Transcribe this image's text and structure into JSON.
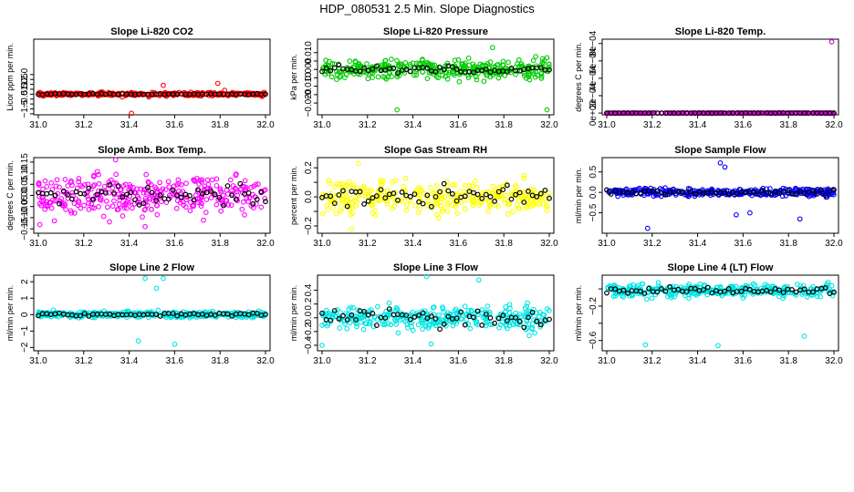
{
  "figure": {
    "title": "HDP_080531  2.5 Min. Slope Diagnostics"
  },
  "chart_data": [
    {
      "type": "scatter",
      "title": "Slope Li-820 CO2",
      "xlabel": "",
      "ylabel": "Licor ppm per min.",
      "color": "#ff0000",
      "xlim": [
        30.98,
        32.02
      ],
      "ylim": [
        -2.1,
        5.6
      ],
      "xticks": [
        31.0,
        31.2,
        31.4,
        31.6,
        31.8,
        32.0
      ],
      "xtick_labels": [
        "31.0",
        "31.2",
        "31.4",
        "31.6",
        "31.8",
        "32.0"
      ],
      "yticks": [
        -2,
        -1.5,
        -1,
        -0.5,
        0,
        0.5,
        1,
        1.5,
        2
      ],
      "ytick_labels": [
        "",
        "−1.5",
        "",
        "−0.5",
        "",
        "0.5",
        "1.0",
        "1.5",
        "2.0"
      ],
      "spread": 0.15,
      "black_spread": 0.05,
      "outliers": [
        [
          31.41,
          -1.95
        ],
        [
          31.55,
          0.9
        ],
        [
          31.79,
          1.1
        ],
        [
          31.82,
          0.4
        ]
      ]
    },
    {
      "type": "scatter",
      "title": "Slope Li-820 Pressure",
      "xlabel": "",
      "ylabel": "kPa per min.",
      "color": "#00cc00",
      "xlim": [
        30.98,
        32.02
      ],
      "ylim": [
        -0.027,
        0.018
      ],
      "xticks": [
        31.0,
        31.2,
        31.4,
        31.6,
        31.8,
        32.0
      ],
      "xtick_labels": [
        "31.0",
        "31.2",
        "31.4",
        "31.6",
        "31.8",
        "32.0"
      ],
      "yticks": [
        -0.02,
        -0.015,
        -0.01,
        -0.005,
        0.0,
        0.005,
        0.01
      ],
      "ytick_labels": [
        "−0.020",
        "",
        "−0.010",
        "",
        "0.000",
        "",
        "0.010"
      ],
      "spread": 0.005,
      "black_spread": 0.002,
      "outliers": [
        [
          31.33,
          -0.024
        ],
        [
          31.99,
          -0.024
        ],
        [
          31.75,
          0.013
        ],
        [
          31.99,
          0.007
        ]
      ]
    },
    {
      "type": "scatter",
      "title": "Slope Li-820 Temp.",
      "xlabel": "",
      "ylabel": "degrees C per min.",
      "color": "#cc00cc",
      "xlim": [
        30.98,
        32.02
      ],
      "ylim": [
        -2e-05,
        0.00085
      ],
      "xticks": [
        31.0,
        31.2,
        31.4,
        31.6,
        31.8,
        32.0
      ],
      "xtick_labels": [
        "31.0",
        "31.2",
        "31.4",
        "31.6",
        "31.8",
        "32.0"
      ],
      "yticks": [
        0.0,
        0.0002,
        0.0004,
        0.0006,
        0.0008
      ],
      "ytick_labels": [
        "0e+00",
        "2e−04",
        "4e−04",
        "6e−04",
        "8e−04"
      ],
      "spread": 2e-06,
      "black_spread": 1e-06,
      "outliers": [
        [
          31.99,
          0.00082
        ]
      ]
    },
    {
      "type": "scatter",
      "title": "Slope Amb. Box Temp.",
      "xlabel": "",
      "ylabel": "degrees C per min.",
      "color": "#ff00ff",
      "xlim": [
        30.98,
        32.02
      ],
      "ylim": [
        -0.17,
        0.17
      ],
      "xticks": [
        31.0,
        31.2,
        31.4,
        31.6,
        31.8,
        32.0
      ],
      "xtick_labels": [
        "31.0",
        "31.2",
        "31.4",
        "31.6",
        "31.8",
        "32.0"
      ],
      "yticks": [
        -0.15,
        -0.1,
        -0.05,
        0.0,
        0.05,
        0.1,
        0.15
      ],
      "ytick_labels": [
        "−0.15",
        "−0.10",
        "−0.05",
        "0.00",
        "0.05",
        "0.10",
        "0.15"
      ],
      "spread": 0.07,
      "black_spread": 0.04,
      "outliers": [
        [
          31.34,
          0.16
        ],
        [
          31.47,
          -0.14
        ]
      ]
    },
    {
      "type": "scatter",
      "title": "Slope Gas Stream RH",
      "xlabel": "",
      "ylabel": "percent per min.",
      "color": "#ffff00",
      "xlim": [
        30.98,
        32.02
      ],
      "ylim": [
        -0.25,
        0.27
      ],
      "xticks": [
        31.0,
        31.2,
        31.4,
        31.6,
        31.8,
        32.0
      ],
      "xtick_labels": [
        "31.0",
        "31.2",
        "31.4",
        "31.6",
        "31.8",
        "32.0"
      ],
      "yticks": [
        -0.2,
        -0.1,
        0.0,
        0.1,
        0.2
      ],
      "ytick_labels": [
        "−0.2",
        "",
        "0.0",
        "",
        "0.2"
      ],
      "spread": 0.09,
      "black_spread": 0.07,
      "outliers": [
        [
          31.13,
          -0.22
        ],
        [
          31.16,
          0.23
        ]
      ]
    },
    {
      "type": "scatter",
      "title": "Slope Sample Flow",
      "xlabel": "",
      "ylabel": "ml/min per min.",
      "color": "#0000ff",
      "xlim": [
        30.98,
        32.02
      ],
      "ylim": [
        -1.0,
        0.85
      ],
      "xticks": [
        31.0,
        31.2,
        31.4,
        31.6,
        31.8,
        32.0
      ],
      "xtick_labels": [
        "31.0",
        "31.2",
        "31.4",
        "31.6",
        "31.8",
        "32.0"
      ],
      "yticks": [
        -0.5,
        0.0,
        0.5
      ],
      "ytick_labels": [
        "−0.5",
        "0.0",
        "0.5"
      ],
      "spread": 0.08,
      "black_spread": 0.05,
      "outliers": [
        [
          31.18,
          -0.88
        ],
        [
          31.5,
          0.72
        ],
        [
          31.52,
          0.62
        ],
        [
          31.57,
          -0.55
        ],
        [
          31.63,
          -0.5
        ],
        [
          31.85,
          -0.65
        ]
      ]
    },
    {
      "type": "scatter",
      "title": "Slope Line 2 Flow",
      "xlabel": "",
      "ylabel": "ml/min per min.",
      "color": "#00e5e5",
      "xlim": [
        30.98,
        32.02
      ],
      "ylim": [
        -2.2,
        2.4
      ],
      "xticks": [
        31.0,
        31.2,
        31.4,
        31.6,
        31.8,
        32.0
      ],
      "xtick_labels": [
        "31.0",
        "31.2",
        "31.4",
        "31.6",
        "31.8",
        "32.0"
      ],
      "yticks": [
        -2,
        -1,
        0,
        1,
        2
      ],
      "ytick_labels": [
        "−2",
        "−1",
        "0",
        "1",
        "2"
      ],
      "spread": 0.15,
      "black_spread": 0.08,
      "outliers": [
        [
          31.47,
          2.2
        ],
        [
          31.55,
          2.2
        ],
        [
          31.6,
          -1.8
        ],
        [
          31.44,
          -1.6
        ],
        [
          31.52,
          1.6
        ]
      ]
    },
    {
      "type": "scatter",
      "title": "Slope Line 3 Flow",
      "xlabel": "",
      "ylabel": "ml/min per min.",
      "color": "#00e5e5",
      "xlim": [
        30.98,
        32.02
      ],
      "ylim": [
        -0.48,
        0.62
      ],
      "xticks": [
        31.0,
        31.2,
        31.4,
        31.6,
        31.8,
        32.0
      ],
      "xtick_labels": [
        "31.0",
        "31.2",
        "31.4",
        "31.6",
        "31.8",
        "32.0"
      ],
      "yticks": [
        -0.4,
        -0.2,
        0.0,
        0.2,
        0.4
      ],
      "ytick_labels": [
        "−0.4",
        "−0.2",
        "0.0",
        "0.2",
        "0.4"
      ],
      "spread": 0.15,
      "black_spread": 0.13,
      "outliers": [
        [
          31.46,
          0.6
        ],
        [
          31.0,
          -0.4
        ],
        [
          31.48,
          -0.38
        ],
        [
          31.69,
          0.55
        ]
      ]
    },
    {
      "type": "scatter",
      "title": "Slope Line 4 (LT) Flow",
      "xlabel": "",
      "ylabel": "ml/min per min.",
      "color": "#00e5e5",
      "xlim": [
        30.98,
        32.02
      ],
      "ylim": [
        -0.72,
        0.16
      ],
      "xticks": [
        31.0,
        31.2,
        31.4,
        31.6,
        31.8,
        32.0
      ],
      "xtick_labels": [
        "31.0",
        "31.2",
        "31.4",
        "31.6",
        "31.8",
        "32.0"
      ],
      "yticks": [
        -0.6,
        -0.4,
        -0.2,
        0.0
      ],
      "ytick_labels": [
        "−0.6",
        "",
        "−0.2",
        ""
      ],
      "spread": 0.06,
      "black_spread": 0.04,
      "outliers": [
        [
          31.17,
          -0.65
        ],
        [
          31.49,
          -0.66
        ],
        [
          31.87,
          -0.55
        ]
      ]
    }
  ]
}
